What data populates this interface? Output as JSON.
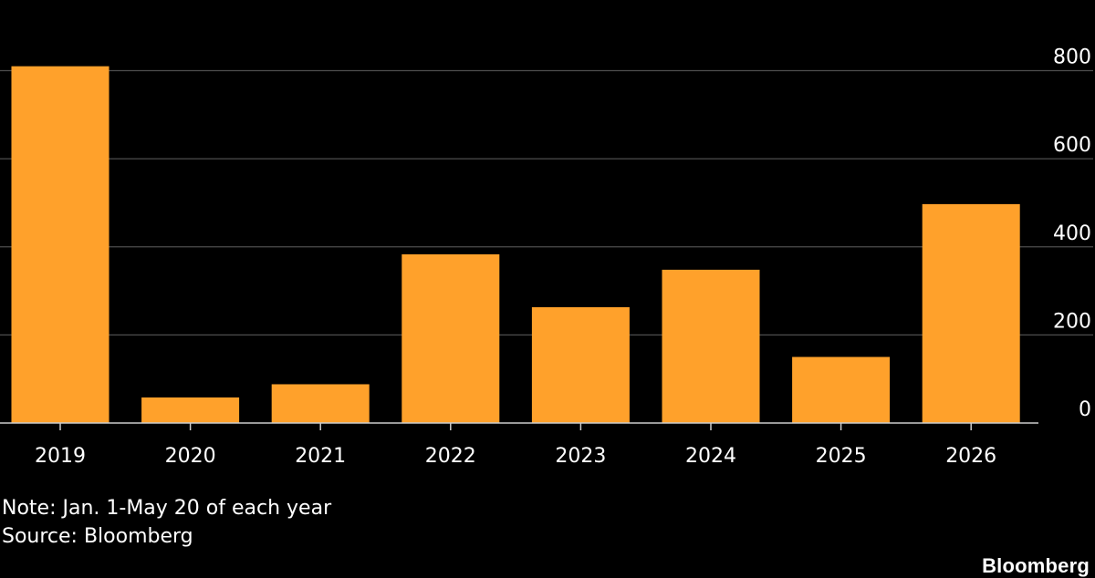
{
  "chart_data": {
    "type": "bar",
    "categories": [
      "2019",
      "2020",
      "2021",
      "2022",
      "2023",
      "2024",
      "2025",
      "2026"
    ],
    "values": [
      810,
      58,
      88,
      383,
      263,
      348,
      150,
      497
    ],
    "ylim": [
      0,
      850
    ],
    "yticks": [
      0,
      200,
      400,
      600,
      800
    ],
    "ytick_labels": [
      "0",
      "200",
      "400",
      "600",
      "800"
    ],
    "title": "",
    "xlabel": "",
    "ylabel": "",
    "grid": true,
    "y_axis_position": "right",
    "colors": {
      "bar": "#ffa12b",
      "background": "#000000",
      "grid": "#4d4d4d",
      "axis": "#cccccc",
      "text": "#ffffff"
    }
  },
  "footer": {
    "note": "Note: Jan. 1-May 20 of each year",
    "source": "Source: Bloomberg"
  },
  "brand": "Bloomberg"
}
